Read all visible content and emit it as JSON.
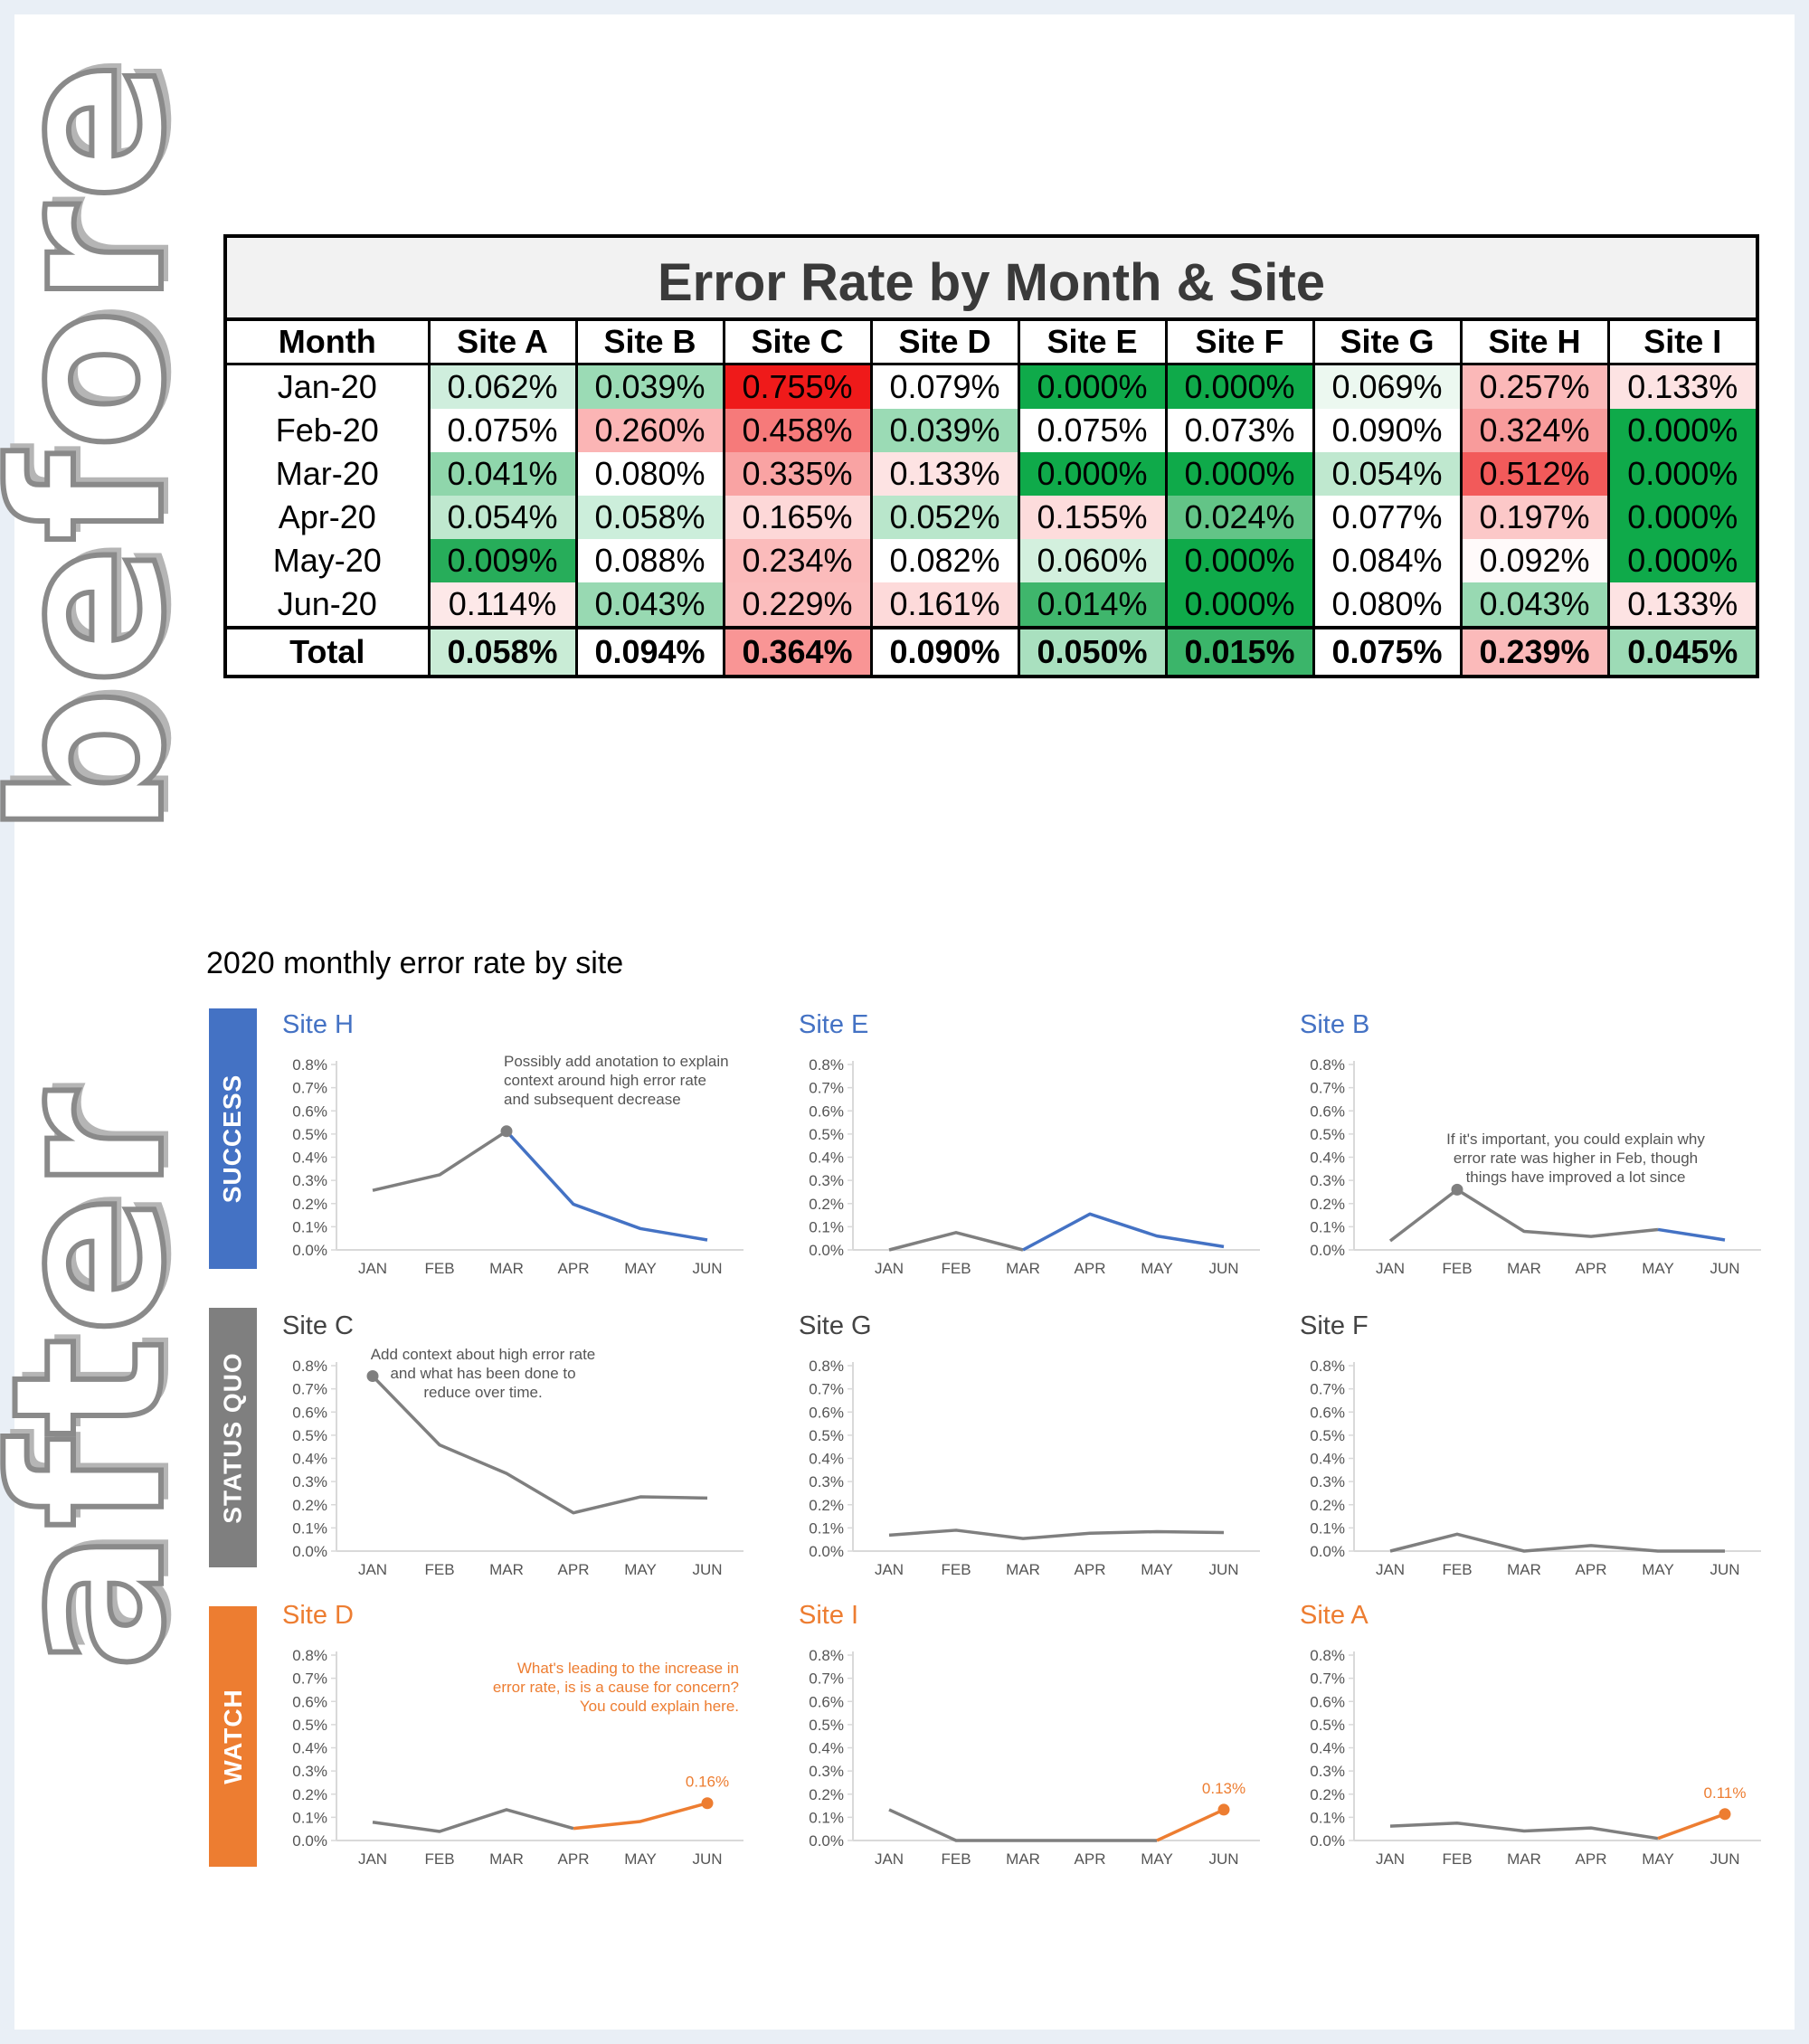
{
  "side_labels": {
    "before": "before",
    "after": "after"
  },
  "table": {
    "title": "Error Rate by Month & Site",
    "headers": [
      "Month",
      "Site A",
      "Site B",
      "Site C",
      "Site D",
      "Site E",
      "Site F",
      "Site G",
      "Site H",
      "Site I"
    ],
    "rows": [
      {
        "month": "Jan-20",
        "cells": [
          {
            "v": "0.062%",
            "c": "#cfeedd"
          },
          {
            "v": "0.039%",
            "c": "#9bdbb5"
          },
          {
            "v": "0.755%",
            "c": "#ef1a1a"
          },
          {
            "v": "0.079%",
            "c": "#ffffff"
          },
          {
            "v": "0.000%",
            "c": "#0faa4a"
          },
          {
            "v": "0.000%",
            "c": "#0faa4a"
          },
          {
            "v": "0.069%",
            "c": "#ecf8f0"
          },
          {
            "v": "0.257%",
            "c": "#fbb8b8"
          },
          {
            "v": "0.133%",
            "c": "#fde3e3"
          }
        ]
      },
      {
        "month": "Feb-20",
        "cells": [
          {
            "v": "0.075%",
            "c": "#ffffff"
          },
          {
            "v": "0.260%",
            "c": "#fbb5b5"
          },
          {
            "v": "0.458%",
            "c": "#f67a7a"
          },
          {
            "v": "0.039%",
            "c": "#9bdbb5"
          },
          {
            "v": "0.075%",
            "c": "#ffffff"
          },
          {
            "v": "0.073%",
            "c": "#ffffff"
          },
          {
            "v": "0.090%",
            "c": "#ffffff"
          },
          {
            "v": "0.324%",
            "c": "#f89b9b"
          },
          {
            "v": "0.000%",
            "c": "#0faa4a"
          }
        ]
      },
      {
        "month": "Mar-20",
        "cells": [
          {
            "v": "0.041%",
            "c": "#8fd6ab"
          },
          {
            "v": "0.080%",
            "c": "#ffffff"
          },
          {
            "v": "0.335%",
            "c": "#f9a3a3"
          },
          {
            "v": "0.133%",
            "c": "#fde3e3"
          },
          {
            "v": "0.000%",
            "c": "#0faa4a"
          },
          {
            "v": "0.000%",
            "c": "#0faa4a"
          },
          {
            "v": "0.054%",
            "c": "#bfe8cf"
          },
          {
            "v": "0.512%",
            "c": "#f25a5a"
          },
          {
            "v": "0.000%",
            "c": "#0faa4a"
          }
        ]
      },
      {
        "month": "Apr-20",
        "cells": [
          {
            "v": "0.054%",
            "c": "#bfe8cf"
          },
          {
            "v": "0.058%",
            "c": "#cceedb"
          },
          {
            "v": "0.165%",
            "c": "#fdd8d8"
          },
          {
            "v": "0.052%",
            "c": "#b9e6cb"
          },
          {
            "v": "0.155%",
            "c": "#fddcdc"
          },
          {
            "v": "0.024%",
            "c": "#63c487"
          },
          {
            "v": "0.077%",
            "c": "#ffffff"
          },
          {
            "v": "0.197%",
            "c": "#fcc8c8"
          },
          {
            "v": "0.000%",
            "c": "#0faa4a"
          }
        ]
      },
      {
        "month": "May-20",
        "cells": [
          {
            "v": "0.009%",
            "c": "#27ad5a"
          },
          {
            "v": "0.088%",
            "c": "#ffffff"
          },
          {
            "v": "0.234%",
            "c": "#fbbbbb"
          },
          {
            "v": "0.082%",
            "c": "#ffffff"
          },
          {
            "v": "0.060%",
            "c": "#d3f0de"
          },
          {
            "v": "0.000%",
            "c": "#0faa4a"
          },
          {
            "v": "0.084%",
            "c": "#ffffff"
          },
          {
            "v": "0.092%",
            "c": "#fffafa"
          },
          {
            "v": "0.000%",
            "c": "#0faa4a"
          }
        ]
      },
      {
        "month": "Jun-20",
        "cells": [
          {
            "v": "0.114%",
            "c": "#fde8e8"
          },
          {
            "v": "0.043%",
            "c": "#98d9b2"
          },
          {
            "v": "0.229%",
            "c": "#fbbdbd"
          },
          {
            "v": "0.161%",
            "c": "#fddada"
          },
          {
            "v": "0.014%",
            "c": "#3fb66c"
          },
          {
            "v": "0.000%",
            "c": "#0faa4a"
          },
          {
            "v": "0.080%",
            "c": "#ffffff"
          },
          {
            "v": "0.043%",
            "c": "#98d9b2"
          },
          {
            "v": "0.133%",
            "c": "#fde3e3"
          }
        ]
      }
    ],
    "total": {
      "month": "Total",
      "cells": [
        {
          "v": "0.058%",
          "c": "#c9ecd6"
        },
        {
          "v": "0.094%",
          "c": "#ffffff"
        },
        {
          "v": "0.364%",
          "c": "#f99595"
        },
        {
          "v": "0.090%",
          "c": "#ffffff"
        },
        {
          "v": "0.050%",
          "c": "#a9e0bf"
        },
        {
          "v": "0.015%",
          "c": "#3bb56a"
        },
        {
          "v": "0.075%",
          "c": "#ffffff"
        },
        {
          "v": "0.239%",
          "c": "#fbbaba"
        },
        {
          "v": "0.045%",
          "c": "#9ddbb6"
        }
      ]
    }
  },
  "after_title": "2020 monthly error rate by site",
  "bands": [
    {
      "label": "SUCCESS",
      "color": "#4472c4"
    },
    {
      "label": "STATUS QUO",
      "color": "#7f7f7f"
    },
    {
      "label": "WATCH",
      "color": "#ed7d31"
    }
  ],
  "colors": {
    "success": "#4472c4",
    "gray": "#7f7f7f",
    "watch": "#ed7d31",
    "axis": "#d9d9d9"
  },
  "chart_data": [
    {
      "type": "line",
      "title": "Site H",
      "category": "success",
      "categories": [
        "JAN",
        "FEB",
        "MAR",
        "APR",
        "MAY",
        "JUN"
      ],
      "y_ticks": [
        "0.0%",
        "0.1%",
        "0.2%",
        "0.3%",
        "0.4%",
        "0.5%",
        "0.6%",
        "0.7%",
        "0.8%"
      ],
      "ylim": [
        0,
        0.8
      ],
      "series": [
        {
          "values": [
            0.257,
            0.324,
            0.512,
            0.197,
            0.092,
            0.043
          ]
        }
      ],
      "highlight_from": 2,
      "marker_at": [
        2
      ],
      "annotation": [
        "Possibly add anotation to explain",
        "context around high error rate",
        "and subsequent decrease"
      ],
      "value_label": ""
    },
    {
      "type": "line",
      "title": "Site E",
      "category": "success",
      "categories": [
        "JAN",
        "FEB",
        "MAR",
        "APR",
        "MAY",
        "JUN"
      ],
      "y_ticks": [
        "0.0%",
        "0.1%",
        "0.2%",
        "0.3%",
        "0.4%",
        "0.5%",
        "0.6%",
        "0.7%",
        "0.8%"
      ],
      "ylim": [
        0,
        0.8
      ],
      "series": [
        {
          "values": [
            0.0,
            0.075,
            0.0,
            0.155,
            0.06,
            0.014
          ]
        }
      ],
      "highlight_from": 2,
      "marker_at": [],
      "annotation": [],
      "value_label": ""
    },
    {
      "type": "line",
      "title": "Site B",
      "category": "success",
      "categories": [
        "JAN",
        "FEB",
        "MAR",
        "APR",
        "MAY",
        "JUN"
      ],
      "y_ticks": [
        "0.0%",
        "0.1%",
        "0.2%",
        "0.3%",
        "0.4%",
        "0.5%",
        "0.6%",
        "0.7%",
        "0.8%"
      ],
      "ylim": [
        0,
        0.8
      ],
      "series": [
        {
          "values": [
            0.039,
            0.26,
            0.08,
            0.058,
            0.088,
            0.043
          ]
        }
      ],
      "highlight_from": 4,
      "marker_at": [
        1
      ],
      "annotation": [
        "If it's important, you could explain why",
        "error rate was higher in Feb, though",
        "things have improved a lot since"
      ],
      "value_label": ""
    },
    {
      "type": "line",
      "title": "Site C",
      "category": "status",
      "categories": [
        "JAN",
        "FEB",
        "MAR",
        "APR",
        "MAY",
        "JUN"
      ],
      "y_ticks": [
        "0.0%",
        "0.1%",
        "0.2%",
        "0.3%",
        "0.4%",
        "0.5%",
        "0.6%",
        "0.7%",
        "0.8%"
      ],
      "ylim": [
        0,
        0.8
      ],
      "series": [
        {
          "values": [
            0.755,
            0.458,
            0.335,
            0.165,
            0.234,
            0.229
          ]
        }
      ],
      "highlight_from": -1,
      "marker_at": [
        0
      ],
      "annotation": [
        "Add context about high error rate",
        "and what has been done to",
        "reduce over time."
      ],
      "value_label": ""
    },
    {
      "type": "line",
      "title": "Site G",
      "category": "status",
      "categories": [
        "JAN",
        "FEB",
        "MAR",
        "APR",
        "MAY",
        "JUN"
      ],
      "y_ticks": [
        "0.0%",
        "0.1%",
        "0.2%",
        "0.3%",
        "0.4%",
        "0.5%",
        "0.6%",
        "0.7%",
        "0.8%"
      ],
      "ylim": [
        0,
        0.8
      ],
      "series": [
        {
          "values": [
            0.069,
            0.09,
            0.054,
            0.077,
            0.084,
            0.08
          ]
        }
      ],
      "highlight_from": -1,
      "marker_at": [],
      "annotation": [],
      "value_label": ""
    },
    {
      "type": "line",
      "title": "Site F",
      "category": "status",
      "categories": [
        "JAN",
        "FEB",
        "MAR",
        "APR",
        "MAY",
        "JUN"
      ],
      "y_ticks": [
        "0.0%",
        "0.1%",
        "0.2%",
        "0.3%",
        "0.4%",
        "0.5%",
        "0.6%",
        "0.7%",
        "0.8%"
      ],
      "ylim": [
        0,
        0.8
      ],
      "series": [
        {
          "values": [
            0.0,
            0.073,
            0.0,
            0.024,
            0.0,
            0.0
          ]
        }
      ],
      "highlight_from": -1,
      "marker_at": [],
      "annotation": [],
      "value_label": ""
    },
    {
      "type": "line",
      "title": "Site D",
      "category": "watch",
      "categories": [
        "JAN",
        "FEB",
        "MAR",
        "APR",
        "MAY",
        "JUN"
      ],
      "y_ticks": [
        "0.0%",
        "0.1%",
        "0.2%",
        "0.3%",
        "0.4%",
        "0.5%",
        "0.6%",
        "0.7%",
        "0.8%"
      ],
      "ylim": [
        0,
        0.8
      ],
      "series": [
        {
          "values": [
            0.079,
            0.039,
            0.133,
            0.052,
            0.082,
            0.161
          ]
        }
      ],
      "highlight_from": 3,
      "marker_at": [
        5
      ],
      "annotation": [
        "What's leading to the increase in",
        "error rate, is is a cause for concern?",
        "You could explain here."
      ],
      "value_label": "0.16%"
    },
    {
      "type": "line",
      "title": "Site I",
      "category": "watch",
      "categories": [
        "JAN",
        "FEB",
        "MAR",
        "APR",
        "MAY",
        "JUN"
      ],
      "y_ticks": [
        "0.0%",
        "0.1%",
        "0.2%",
        "0.3%",
        "0.4%",
        "0.5%",
        "0.6%",
        "0.7%",
        "0.8%"
      ],
      "ylim": [
        0,
        0.8
      ],
      "series": [
        {
          "values": [
            0.133,
            0.0,
            0.0,
            0.0,
            0.0,
            0.133
          ]
        }
      ],
      "highlight_from": 4,
      "marker_at": [
        5
      ],
      "annotation": [],
      "value_label": "0.13%"
    },
    {
      "type": "line",
      "title": "Site A",
      "category": "watch",
      "categories": [
        "JAN",
        "FEB",
        "MAR",
        "APR",
        "MAY",
        "JUN"
      ],
      "y_ticks": [
        "0.0%",
        "0.1%",
        "0.2%",
        "0.3%",
        "0.4%",
        "0.5%",
        "0.6%",
        "0.7%",
        "0.8%"
      ],
      "ylim": [
        0,
        0.8
      ],
      "series": [
        {
          "values": [
            0.062,
            0.075,
            0.041,
            0.054,
            0.009,
            0.114
          ]
        }
      ],
      "highlight_from": 4,
      "marker_at": [
        5
      ],
      "annotation": [],
      "value_label": "0.11%"
    }
  ]
}
